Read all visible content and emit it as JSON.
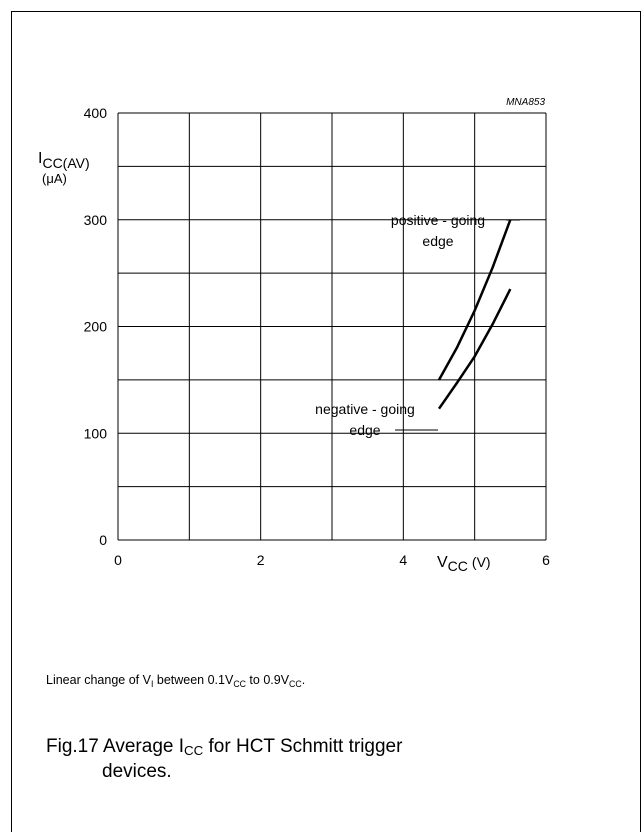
{
  "chart_data": {
    "type": "line",
    "figure_id": "MNA853",
    "ylabel": {
      "main": "I",
      "sub": "CC(AV)",
      "unit": "(μA)"
    },
    "xlabel": {
      "main": "V",
      "sub": "CC",
      "unit": "(V)"
    },
    "xlim": [
      0,
      6
    ],
    "ylim": [
      0,
      400
    ],
    "x_ticks": [
      "0",
      "2",
      "4",
      "6"
    ],
    "y_ticks": [
      "0",
      "100",
      "200",
      "300",
      "400"
    ],
    "grid": true,
    "series": [
      {
        "name": "positive - going edge",
        "label_lines": [
          "positive - going",
          "edge"
        ],
        "x": [
          4.5,
          4.75,
          5.0,
          5.25,
          5.5
        ],
        "y": [
          150,
          180,
          215,
          255,
          300
        ]
      },
      {
        "name": "negative - going edge",
        "label_lines": [
          "negative - going",
          "edge"
        ],
        "x": [
          4.5,
          4.75,
          5.0,
          5.25,
          5.5
        ],
        "y": [
          123,
          147,
          172,
          202,
          235
        ]
      }
    ]
  },
  "note": {
    "p1": "Linear change of V",
    "s1": "I",
    "p2": " between 0.1V",
    "s2": "CC",
    "p3": " to 0.9V",
    "s3": "CC",
    "p4": "."
  },
  "caption": {
    "p1": "Fig.17  Average I",
    "s1": "CC",
    "p2": " for HCT Schmitt trigger",
    "line2": "devices."
  }
}
